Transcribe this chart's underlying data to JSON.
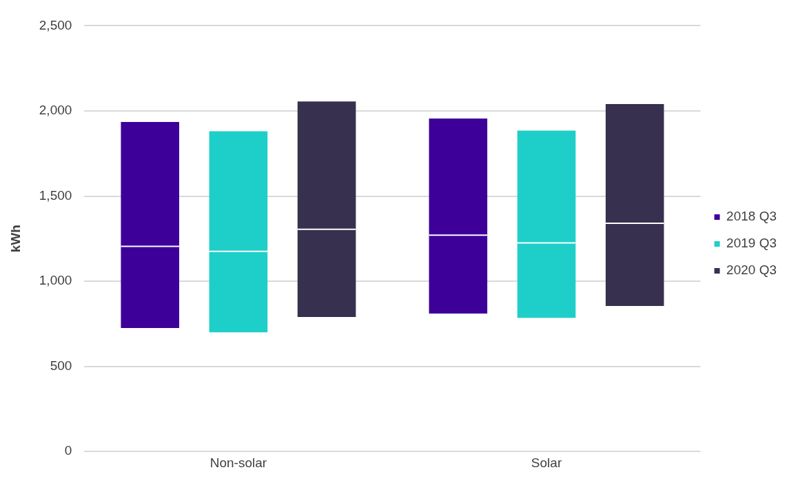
{
  "chart_data": {
    "type": "box",
    "ylabel": "kWh",
    "categories": [
      "Non-solar",
      "Solar"
    ],
    "series": [
      {
        "name": "2018 Q3",
        "color": "#3d0099",
        "boxes": [
          {
            "low": 725,
            "q1": 725,
            "median": 1205,
            "q3": 1935,
            "high": 1935
          },
          {
            "low": 810,
            "q1": 810,
            "median": 1270,
            "q3": 1955,
            "high": 1955
          }
        ]
      },
      {
        "name": "2019 Q3",
        "color": "#1ecfc9",
        "boxes": [
          {
            "low": 700,
            "q1": 700,
            "median": 1175,
            "q3": 1880,
            "high": 1880
          },
          {
            "low": 785,
            "q1": 785,
            "median": 1225,
            "q3": 1885,
            "high": 1885
          }
        ]
      },
      {
        "name": "2020 Q3",
        "color": "#37304e",
        "boxes": [
          {
            "low": 790,
            "q1": 790,
            "median": 1305,
            "q3": 2055,
            "high": 2055
          },
          {
            "low": 855,
            "q1": 855,
            "median": 1340,
            "q3": 2040,
            "high": 2040
          }
        ]
      }
    ],
    "ylim": [
      0,
      2500
    ],
    "yticks": [
      {
        "value": 0,
        "label": "0"
      },
      {
        "value": 500,
        "label": "500"
      },
      {
        "value": 1000,
        "label": "1,000"
      },
      {
        "value": 1500,
        "label": "1,500"
      },
      {
        "value": 2000,
        "label": "2,000"
      },
      {
        "value": 2500,
        "label": "2,500"
      }
    ],
    "grid": "y",
    "legend": "right"
  }
}
